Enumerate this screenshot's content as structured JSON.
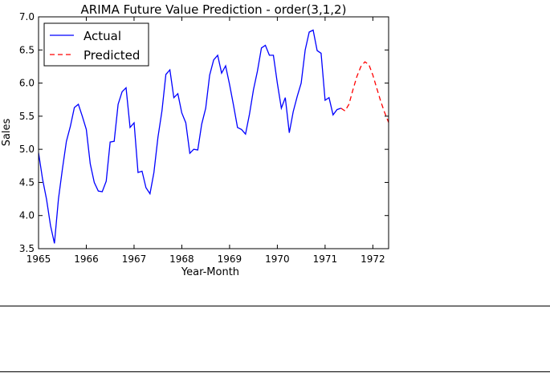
{
  "chart_data": {
    "type": "line",
    "title": "ARIMA Future Value Prediction - order(3,1,2)",
    "xlabel": "Year-Month",
    "ylabel": "Sales",
    "xlim": [
      1965.0,
      1972.33
    ],
    "ylim": [
      3.5,
      7.0
    ],
    "x_ticks": [
      "1965",
      "1966",
      "1967",
      "1968",
      "1969",
      "1970",
      "1971",
      "1972"
    ],
    "y_ticks": [
      "3.5",
      "4.0",
      "4.5",
      "5.0",
      "5.5",
      "6.0",
      "6.5",
      "7.0"
    ],
    "legend_position": "top-left",
    "grid": false,
    "series": [
      {
        "name": "Actual",
        "color": "#0000ff",
        "style": "solid",
        "x": [
          "1965-01",
          "1965-02",
          "1965-03",
          "1965-04",
          "1965-05",
          "1965-06",
          "1965-07",
          "1965-08",
          "1965-09",
          "1965-10",
          "1965-11",
          "1965-12",
          "1966-01",
          "1966-02",
          "1966-03",
          "1966-04",
          "1966-05",
          "1966-06",
          "1966-07",
          "1966-08",
          "1966-09",
          "1966-10",
          "1966-11",
          "1966-12",
          "1967-01",
          "1967-02",
          "1967-03",
          "1967-04",
          "1967-05",
          "1967-06",
          "1967-07",
          "1967-08",
          "1967-09",
          "1967-10",
          "1967-11",
          "1967-12",
          "1968-01",
          "1968-02",
          "1968-03",
          "1968-04",
          "1968-05",
          "1968-06",
          "1968-07",
          "1968-08",
          "1968-09",
          "1968-10",
          "1968-11",
          "1968-12",
          "1969-01",
          "1969-02",
          "1969-03",
          "1969-04",
          "1969-05",
          "1969-06",
          "1969-07",
          "1969-08",
          "1969-09",
          "1969-10",
          "1969-11",
          "1969-12",
          "1970-01",
          "1970-02",
          "1970-03",
          "1970-04",
          "1970-05",
          "1970-06",
          "1970-07",
          "1970-08",
          "1970-09",
          "1970-10",
          "1970-11",
          "1970-12",
          "1971-01",
          "1971-02",
          "1971-03",
          "1971-04",
          "1971-05"
        ],
        "values": [
          4.95,
          4.55,
          4.25,
          3.85,
          3.58,
          4.25,
          4.7,
          5.12,
          5.35,
          5.63,
          5.68,
          5.5,
          5.3,
          4.78,
          4.5,
          4.37,
          4.36,
          4.52,
          5.11,
          5.12,
          5.68,
          5.87,
          5.93,
          5.33,
          5.4,
          4.65,
          4.67,
          4.42,
          4.33,
          4.65,
          5.18,
          5.58,
          6.13,
          6.2,
          5.78,
          5.84,
          5.55,
          5.4,
          4.94,
          5.0,
          4.99,
          5.38,
          5.62,
          6.12,
          6.35,
          6.42,
          6.15,
          6.26,
          5.98,
          5.66,
          5.33,
          5.3,
          5.23,
          5.53,
          5.9,
          6.18,
          6.53,
          6.57,
          6.42,
          6.42,
          6.0,
          5.62,
          5.78,
          5.25,
          5.57,
          5.8,
          6.0,
          6.5,
          6.77,
          6.8,
          6.49,
          6.45,
          5.74,
          5.78,
          5.52,
          5.6,
          5.62
        ]
      },
      {
        "name": "Predicted",
        "color": "#ff0000",
        "style": "dashed",
        "x": [
          "1971-05",
          "1971-06",
          "1971-07",
          "1971-08",
          "1971-09",
          "1971-10",
          "1971-11",
          "1971-12",
          "1972-01",
          "1972-02",
          "1972-03",
          "1972-04",
          "1972-05"
        ],
        "values": [
          5.62,
          5.58,
          5.68,
          5.9,
          6.1,
          6.25,
          6.32,
          6.28,
          6.12,
          5.92,
          5.72,
          5.55,
          5.4
        ]
      }
    ]
  }
}
